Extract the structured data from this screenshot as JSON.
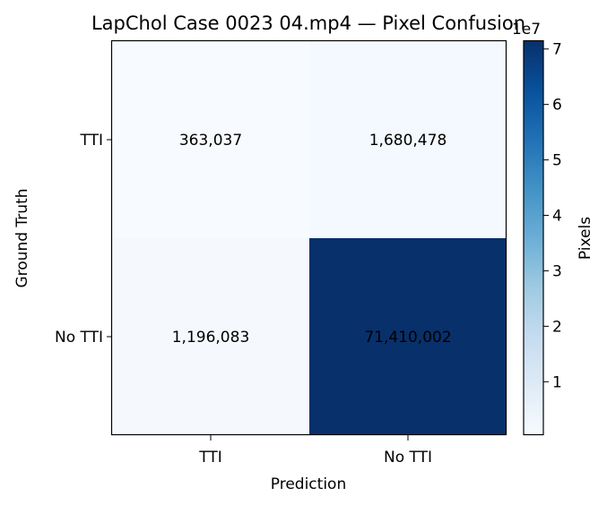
{
  "chart_data": {
    "type": "heatmap",
    "title": "LapChol Case 0023 04.mp4 — Pixel Confusion",
    "xlabel": "Prediction",
    "ylabel": "Ground Truth",
    "x_categories": [
      "TTI",
      "No TTI"
    ],
    "y_categories": [
      "TTI",
      "No TTI"
    ],
    "values": [
      [
        363037,
        1680478
      ],
      [
        1196083,
        71410002
      ]
    ],
    "cell_labels": [
      [
        "363,037",
        "1,680,478"
      ],
      [
        "1,196,083",
        "71,410,002"
      ]
    ],
    "colormap": "Blues",
    "colorbar": {
      "label": "Pixels",
      "offset_label": "1e7",
      "ticks": [
        1,
        2,
        3,
        4,
        5,
        6,
        7
      ],
      "tick_labels": [
        "1",
        "2",
        "3",
        "4",
        "5",
        "6",
        "7"
      ],
      "min": 363037,
      "max": 71410002
    }
  }
}
